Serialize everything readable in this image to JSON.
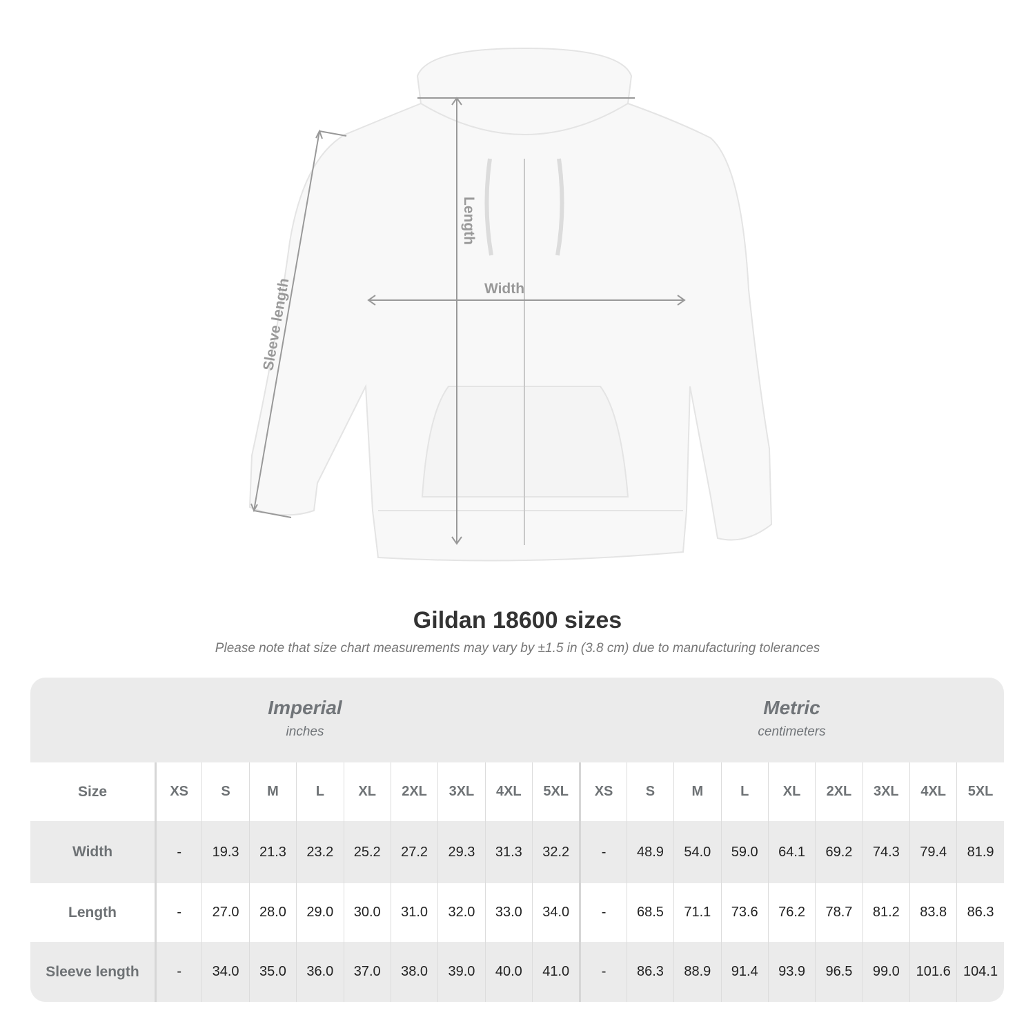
{
  "diagram": {
    "length_label": "Length",
    "width_label": "Width",
    "sleeve_label": "Sleeve length"
  },
  "title": "Gildan 18600 sizes",
  "subtitle": "Please note that size chart measurements may vary by ±1.5 in (3.8 cm) due to manufacturing tolerances",
  "imperial": {
    "name": "Imperial",
    "unit": "inches"
  },
  "metric": {
    "name": "Metric",
    "unit": "centimeters"
  },
  "table": {
    "size_label": "Size",
    "sizes": [
      "XS",
      "S",
      "M",
      "L",
      "XL",
      "2XL",
      "3XL",
      "4XL",
      "5XL"
    ],
    "rows": [
      {
        "label": "Width",
        "imperial": [
          "-",
          "19.3",
          "21.3",
          "23.2",
          "25.2",
          "27.2",
          "29.3",
          "31.3",
          "32.2"
        ],
        "metric": [
          "-",
          "48.9",
          "54.0",
          "59.0",
          "64.1",
          "69.2",
          "74.3",
          "79.4",
          "81.9"
        ]
      },
      {
        "label": "Length",
        "imperial": [
          "-",
          "27.0",
          "28.0",
          "29.0",
          "30.0",
          "31.0",
          "32.0",
          "33.0",
          "34.0"
        ],
        "metric": [
          "-",
          "68.5",
          "71.1",
          "73.6",
          "76.2",
          "78.7",
          "81.2",
          "83.8",
          "86.3"
        ]
      },
      {
        "label": "Sleeve length",
        "imperial": [
          "-",
          "34.0",
          "35.0",
          "36.0",
          "37.0",
          "38.0",
          "39.0",
          "40.0",
          "41.0"
        ],
        "metric": [
          "-",
          "86.3",
          "88.9",
          "91.4",
          "93.9",
          "96.5",
          "99.0",
          "101.6",
          "104.1"
        ]
      }
    ]
  },
  "colors": {
    "measure_line": "#999999",
    "label_gray": "#6e7275",
    "band_gray": "#ebebeb"
  }
}
